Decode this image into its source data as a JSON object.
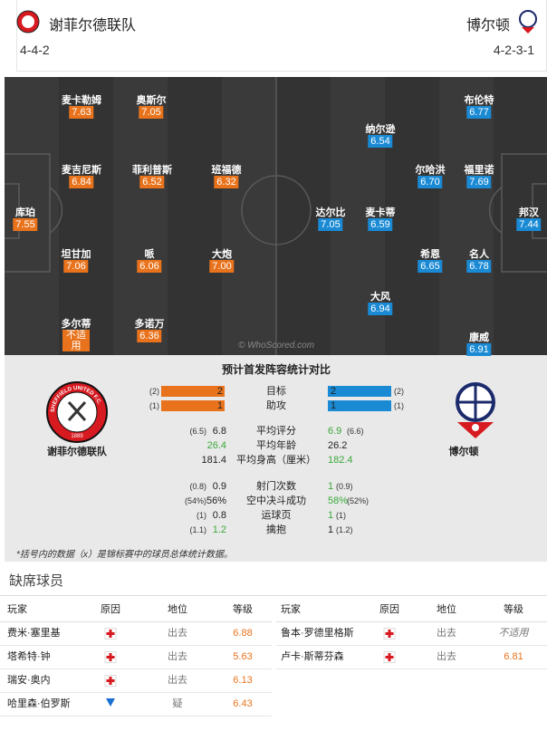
{
  "header": {
    "home": {
      "name": "谢菲尔德联队",
      "formation": "4-4-2"
    },
    "away": {
      "name": "博尔顿",
      "formation": "4-2-3-1"
    }
  },
  "pitch": {
    "home_players": [
      {
        "name": "麦卡勒姆",
        "rating": "7.63"
      },
      {
        "name": "奥斯尔",
        "rating": "7.05"
      },
      {
        "name": "麦吉尼斯",
        "rating": "6.84"
      },
      {
        "name": "菲利普斯",
        "rating": "6.52"
      },
      {
        "name": "班福德",
        "rating": "6.32"
      },
      {
        "name": "库珀",
        "rating": "7.55"
      },
      {
        "name": "坦甘加",
        "rating": "7.06"
      },
      {
        "name": "哌",
        "rating": "6.06"
      },
      {
        "name": "大炮",
        "rating": "7.00"
      },
      {
        "name": "多尔蒂",
        "rating": "不适用"
      },
      {
        "name": "多诺万",
        "rating": "6.36"
      }
    ],
    "away_players": [
      {
        "name": "布伦特",
        "rating": "6.77"
      },
      {
        "name": "纳尔逊",
        "rating": "6.54"
      },
      {
        "name": "尔哈洪",
        "rating": "6.70"
      },
      {
        "name": "福里诺",
        "rating": "7.69"
      },
      {
        "name": "达尔比",
        "rating": "7.05"
      },
      {
        "name": "麦卡蒂",
        "rating": "6.59"
      },
      {
        "name": "邦汉",
        "rating": "7.44"
      },
      {
        "name": "希恩",
        "rating": "6.65"
      },
      {
        "name": "名人",
        "rating": "6.78"
      },
      {
        "name": "大风",
        "rating": "6.94"
      },
      {
        "name": "康威",
        "rating": "6.91"
      }
    ],
    "watermark": "© WhoScored.com"
  },
  "comparison": {
    "title": "预计首发阵容统计对比",
    "home_name": "谢菲尔德联队",
    "away_name": "博尔顿",
    "crest_text": "SHEFFIELD UNITED F.C.",
    "crest_year": "1889",
    "bars": [
      {
        "label": "目标",
        "home_total": "(2)",
        "home": "2",
        "away": "2",
        "away_total": "(2)"
      },
      {
        "label": "助攻",
        "home_total": "(1)",
        "home": "1",
        "away": "1",
        "away_total": "(1)"
      }
    ],
    "stats": [
      {
        "label": "平均评分",
        "home_total": "(6.5)",
        "home": "6.8",
        "away": "6.9",
        "away_total": "(6.6)"
      },
      {
        "label": "平均年龄",
        "home": "26.4",
        "away": "26.2"
      },
      {
        "label": "平均身高（厘米）",
        "home": "181.4",
        "away": "182.4"
      },
      {
        "label": "射门次数",
        "home_total": "(0.8)",
        "home": "0.9",
        "away": "1",
        "away_total": "(0.9)"
      },
      {
        "label": "空中决斗成功",
        "home_total": "(54%)",
        "home": "56%",
        "away": "58%",
        "away_total": "(52%)"
      },
      {
        "label": "运球页",
        "home_total": "(1)",
        "home": "0.8",
        "away": "1",
        "away_total": "(1)"
      },
      {
        "label": "擒抱",
        "home_total": "(1.1)",
        "home": "1.2",
        "away": "1",
        "away_total": "(1.2)"
      }
    ],
    "note": "*括号内的数据（x）是锦标赛中的球员总体统计数据。"
  },
  "absent": {
    "title": "缺席球员",
    "columns": [
      "玩家",
      "原因",
      "地位",
      "等级"
    ],
    "home": [
      {
        "player": "费米·塞里基",
        "status": "出去",
        "rating": "6.88"
      },
      {
        "player": "塔希特·钟",
        "status": "出去",
        "rating": "5.63"
      },
      {
        "player": "瑞安·奥内",
        "status": "出去",
        "rating": "6.13"
      },
      {
        "player": "哈里森·伯罗斯",
        "status": "疑",
        "rating": "6.43"
      }
    ],
    "away": [
      {
        "player": "鲁本·罗德里格斯",
        "status": "出去",
        "rating": "不适用"
      },
      {
        "player": "卢卡·斯蒂芬森",
        "status": "出去",
        "rating": "6.81"
      }
    ]
  }
}
